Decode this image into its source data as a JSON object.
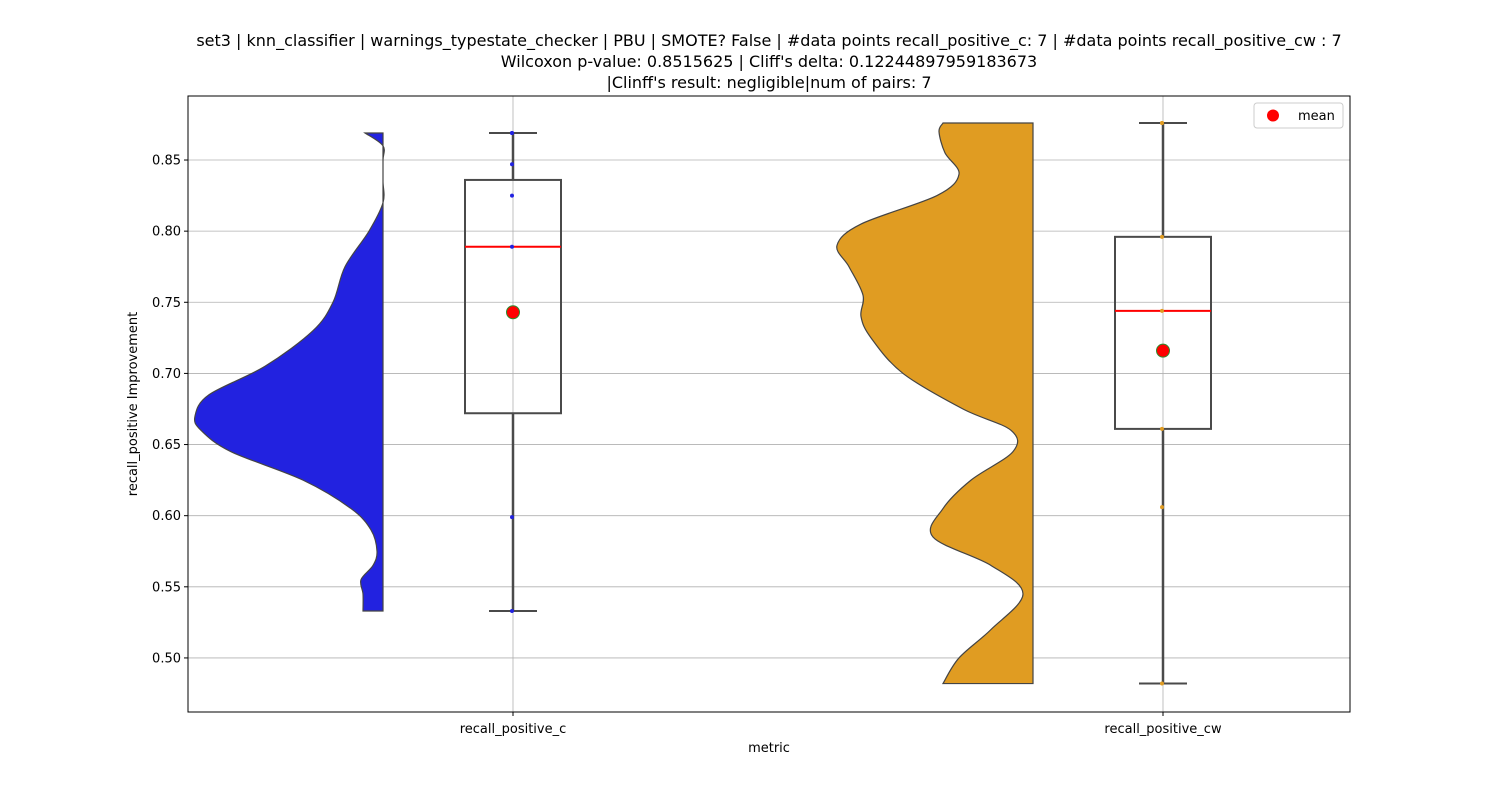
{
  "chart_data": {
    "type": "violin-box",
    "title_lines": [
      "set3 | knn_classifier | warnings_typestate_checker | PBU | SMOTE? False | #data points recall_positive_c: 7 | #data points recall_positive_cw : 7",
      "Wilcoxon p-value: 0.8515625 | Cliff's delta: 0.12244897959183673",
      "|Clinff's result: negligible|num of pairs: 7"
    ],
    "xlabel": "metric",
    "ylabel": "recall_positive Improvement",
    "ylim": [
      0.462,
      0.895
    ],
    "y_ticks": [
      "0.50",
      "0.55",
      "0.60",
      "0.65",
      "0.70",
      "0.75",
      "0.80",
      "0.85"
    ],
    "grid": true,
    "legend": {
      "placement": "top-right",
      "entries": [
        {
          "label": "mean",
          "color": "#ff0000"
        }
      ]
    },
    "categories": [
      "recall_positive_c",
      "recall_positive_cw"
    ],
    "series": [
      {
        "category": "recall_positive_c",
        "violin_color": "#2222e0",
        "points": [
          0.533,
          0.599,
          0.789,
          0.825,
          0.847,
          0.869,
          0.869
        ],
        "box": {
          "whisker_low": 0.533,
          "q1": 0.672,
          "median": 0.789,
          "q3": 0.836,
          "whisker_high": 0.869
        },
        "mean": 0.743,
        "density": [
          [
            0.533,
            0.1
          ],
          [
            0.545,
            0.1
          ],
          [
            0.555,
            0.11
          ],
          [
            0.565,
            0.05
          ],
          [
            0.575,
            0.03
          ],
          [
            0.59,
            0.06
          ],
          [
            0.605,
            0.16
          ],
          [
            0.625,
            0.4
          ],
          [
            0.645,
            0.76
          ],
          [
            0.66,
            0.91
          ],
          [
            0.67,
            0.94
          ],
          [
            0.685,
            0.87
          ],
          [
            0.705,
            0.59
          ],
          [
            0.73,
            0.35
          ],
          [
            0.75,
            0.25
          ],
          [
            0.775,
            0.19
          ],
          [
            0.8,
            0.07
          ],
          [
            0.82,
            0.0
          ],
          [
            0.835,
            0.0
          ],
          [
            0.85,
            0.0
          ],
          [
            0.86,
            0.0
          ],
          [
            0.869,
            0.09
          ]
        ]
      },
      {
        "category": "recall_positive_cw",
        "violin_color": "#e09c22",
        "points": [
          0.482,
          0.606,
          0.661,
          0.744,
          0.796,
          0.876,
          0.876
        ],
        "box": {
          "whisker_low": 0.482,
          "q1": 0.661,
          "median": 0.744,
          "q3": 0.796,
          "whisker_high": 0.876
        },
        "mean": 0.716,
        "density": [
          [
            0.482,
            0.45
          ],
          [
            0.5,
            0.37
          ],
          [
            0.52,
            0.21
          ],
          [
            0.545,
            0.05
          ],
          [
            0.565,
            0.21
          ],
          [
            0.585,
            0.5
          ],
          [
            0.605,
            0.45
          ],
          [
            0.625,
            0.31
          ],
          [
            0.645,
            0.1
          ],
          [
            0.66,
            0.11
          ],
          [
            0.675,
            0.35
          ],
          [
            0.7,
            0.65
          ],
          [
            0.725,
            0.81
          ],
          [
            0.74,
            0.86
          ],
          [
            0.755,
            0.85
          ],
          [
            0.775,
            0.92
          ],
          [
            0.79,
            0.98
          ],
          [
            0.805,
            0.86
          ],
          [
            0.825,
            0.48
          ],
          [
            0.84,
            0.37
          ],
          [
            0.855,
            0.44
          ],
          [
            0.87,
            0.47
          ],
          [
            0.876,
            0.45
          ]
        ]
      }
    ]
  }
}
